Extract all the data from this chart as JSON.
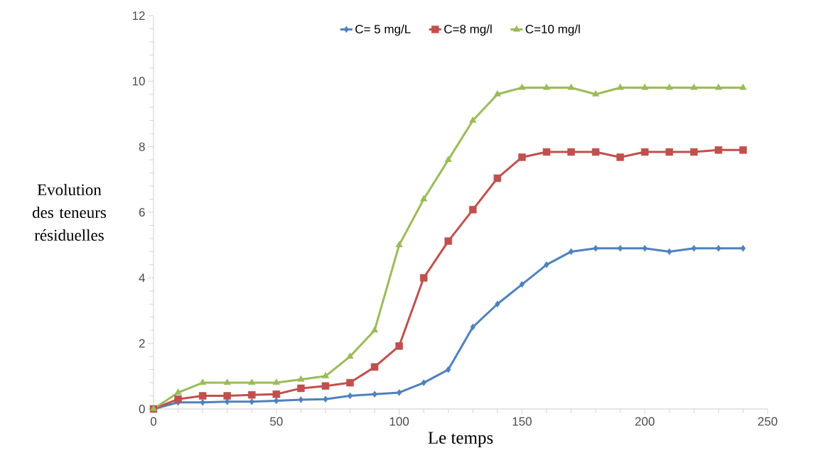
{
  "chart_data": {
    "type": "line",
    "xlabel": "Le temps",
    "ylabel": "Evolution des teneurs résiduelles",
    "x": [
      0,
      10,
      20,
      30,
      40,
      50,
      60,
      70,
      80,
      90,
      100,
      110,
      120,
      130,
      140,
      150,
      160,
      170,
      180,
      190,
      200,
      210,
      220,
      230,
      240
    ],
    "series": [
      {
        "name": "C= 5 mg/L",
        "color": "#4f81bd",
        "marker": "diamond",
        "values": [
          0,
          0.2,
          0.2,
          0.22,
          0.22,
          0.25,
          0.28,
          0.3,
          0.4,
          0.45,
          0.5,
          0.8,
          1.2,
          2.5,
          3.2,
          3.8,
          4.4,
          4.8,
          4.9,
          4.9,
          4.9,
          4.8,
          4.9,
          4.9,
          4.9
        ]
      },
      {
        "name": "C=8  mg/l",
        "color": "#c0504d",
        "marker": "square",
        "values": [
          0,
          0.3,
          0.4,
          0.4,
          0.43,
          0.45,
          0.63,
          0.7,
          0.8,
          1.28,
          1.92,
          4.0,
          5.12,
          6.08,
          7.04,
          7.68,
          7.84,
          7.84,
          7.84,
          7.68,
          7.84,
          7.84,
          7.84,
          7.9,
          7.9
        ]
      },
      {
        "name": "C=10  mg/l",
        "color": "#9bbb59",
        "marker": "triangle",
        "values": [
          0,
          0.5,
          0.8,
          0.8,
          0.8,
          0.8,
          0.9,
          1.0,
          1.6,
          2.4,
          5.0,
          6.4,
          7.6,
          8.8,
          9.6,
          9.8,
          9.8,
          9.8,
          9.6,
          9.8,
          9.8,
          9.8,
          9.8,
          9.8,
          9.8
        ]
      }
    ],
    "xlim": [
      0,
      250
    ],
    "xticks": [
      0,
      50,
      100,
      150,
      200,
      250
    ],
    "ylim": [
      0,
      12
    ],
    "yticks": [
      0,
      2,
      4,
      6,
      8,
      10,
      12
    ],
    "grid": false,
    "legend": "top",
    "line_style": "solid"
  }
}
